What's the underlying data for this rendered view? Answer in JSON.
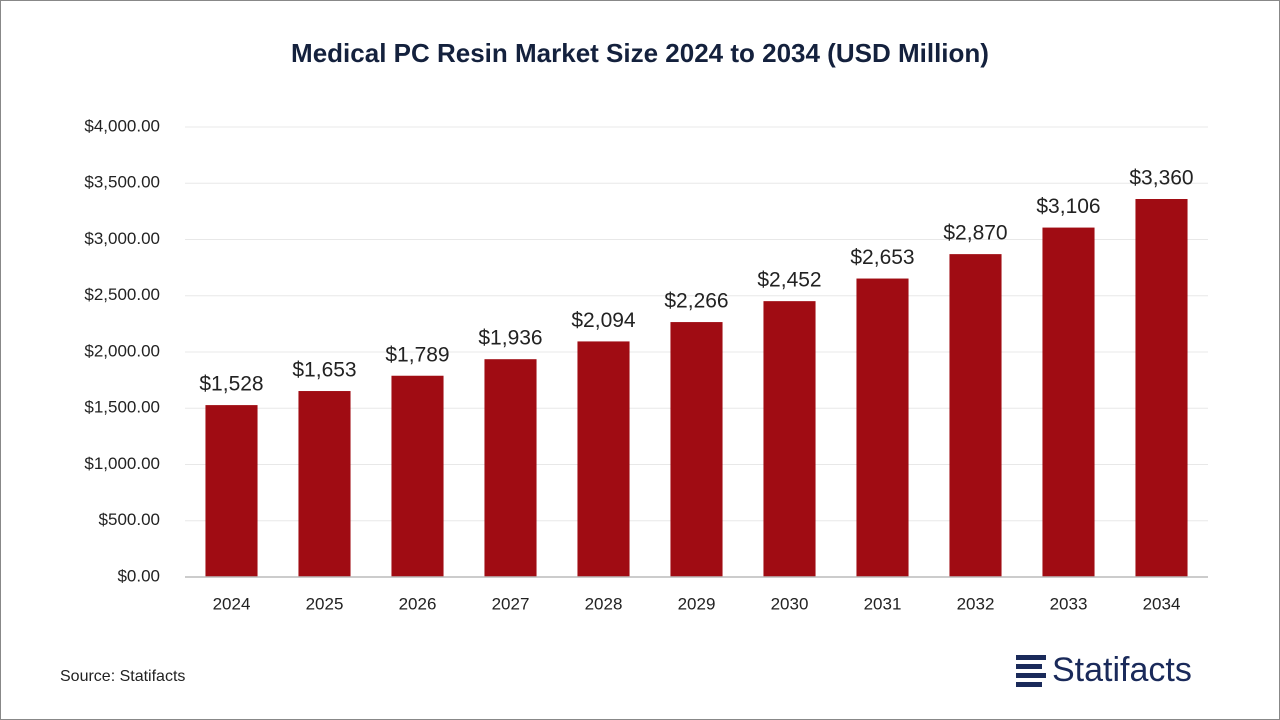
{
  "chart_data": {
    "type": "bar",
    "title": "Medical PC Resin Market Size 2024 to 2034 (USD Million)",
    "categories": [
      "2024",
      "2025",
      "2026",
      "2027",
      "2028",
      "2029",
      "2030",
      "2031",
      "2032",
      "2033",
      "2034"
    ],
    "values": [
      1528,
      1653,
      1789,
      1936,
      2094,
      2266,
      2452,
      2653,
      2870,
      3106,
      3360
    ],
    "value_labels": [
      "$1,528",
      "$1,653",
      "$1,789",
      "$1,936",
      "$2,094",
      "$2,266",
      "$2,452",
      "$2,653",
      "$2,870",
      "$3,106",
      "$3,360"
    ],
    "color": "#a00c13",
    "ylim": [
      0,
      4000
    ],
    "yticks": [
      {
        "value": 0,
        "label": "$0.00"
      },
      {
        "value": 500,
        "label": "$500.00"
      },
      {
        "value": 1000,
        "label": "$1,000.00"
      },
      {
        "value": 1500,
        "label": "$1,500.00"
      },
      {
        "value": 2000,
        "label": "$2,000.00"
      },
      {
        "value": 2500,
        "label": "$2,500.00"
      },
      {
        "value": 3000,
        "label": "$3,000.00"
      },
      {
        "value": 3500,
        "label": "$3,500.00"
      },
      {
        "value": 4000,
        "label": "$4,000.00"
      }
    ],
    "grid": true,
    "source": "Source: Statifacts",
    "logo": "Statifacts"
  }
}
